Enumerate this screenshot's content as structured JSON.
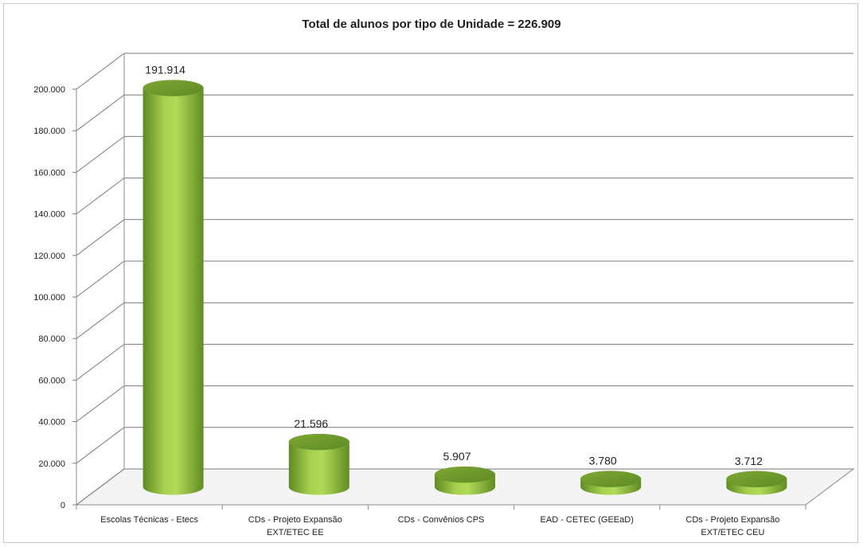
{
  "chart_data": {
    "type": "bar",
    "title": "Total de alunos por tipo de Unidade = 226.909",
    "categories": [
      [
        "Escolas Técnicas - Etecs"
      ],
      [
        "CDs - Projeto Expansão",
        "EXT/ETEC EE"
      ],
      [
        "CDs - Convênios CPS"
      ],
      [
        "EAD - CETEC (GEEaD)"
      ],
      [
        "CDs - Projeto Expansão",
        "EXT/ETEC CEU"
      ]
    ],
    "values": [
      191914,
      21596,
      5907,
      3780,
      3712
    ],
    "value_labels": [
      "191.914",
      "21.596",
      "5.907",
      "3.780",
      "3.712"
    ],
    "y_ticks": [
      "0",
      "20.000",
      "40.000",
      "60.000",
      "80.000",
      "100.000",
      "120.000",
      "140.000",
      "160.000",
      "180.000",
      "200.000"
    ],
    "ylim": [
      0,
      200000
    ],
    "grid": true,
    "style": "3d-cylinder",
    "bar_color": "#8cb83c"
  }
}
